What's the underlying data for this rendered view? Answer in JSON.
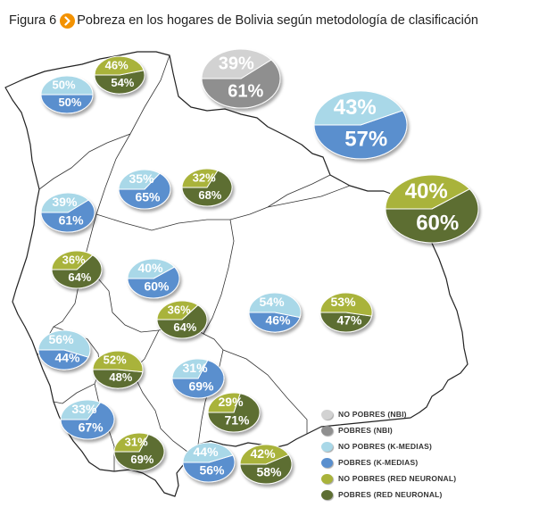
{
  "figure": {
    "label": "Figura 6",
    "title": "Pobreza en los hogares de Bolivia según metodología de clasificación"
  },
  "colors": {
    "nbi_no_pobres": "#d2d2d2",
    "nbi_pobres": "#8f8f8f",
    "km_no_pobres": "#a9d8e8",
    "km_pobres": "#5a8fce",
    "rn_no_pobres": "#a9b33a",
    "rn_pobres": "#5d6e32",
    "badge": "#f39200"
  },
  "legend": [
    {
      "key": "nbi_no_pobres",
      "label": "NO POBRES (NBI)"
    },
    {
      "key": "nbi_pobres",
      "label": "POBRES (NBI)"
    },
    {
      "key": "km_no_pobres",
      "label": "NO POBRES (K-MEDIAS)"
    },
    {
      "key": "km_pobres",
      "label": "POBRES (K-MEDIAS)"
    },
    {
      "key": "rn_no_pobres",
      "label": "NO POBRES (RED NEURONAL)"
    },
    {
      "key": "rn_pobres",
      "label": "POBRES (RED NEURONAL)"
    }
  ],
  "chart_data": [
    {
      "type": "pie",
      "method": "NBI",
      "no_pobres": 39,
      "pobres": 61,
      "labels": [
        "39%",
        "61%"
      ]
    },
    {
      "type": "pie",
      "method": "K-MEDIAS",
      "no_pobres": 43,
      "pobres": 57,
      "labels": [
        "43%",
        "57%"
      ]
    },
    {
      "type": "pie",
      "method": "RED NEURONAL",
      "no_pobres": 40,
      "pobres": 60,
      "labels": [
        "40%",
        "60%"
      ]
    },
    {
      "type": "pie",
      "method": "K-MEDIAS",
      "no_pobres": 50,
      "pobres": 50,
      "labels": [
        "50%",
        "50%"
      ]
    },
    {
      "type": "pie",
      "method": "RED NEURONAL",
      "no_pobres": 46,
      "pobres": 54,
      "labels": [
        "46%",
        "54%"
      ]
    },
    {
      "type": "pie",
      "method": "K-MEDIAS",
      "no_pobres": 35,
      "pobres": 65,
      "labels": [
        "35%",
        "65%"
      ]
    },
    {
      "type": "pie",
      "method": "RED NEURONAL",
      "no_pobres": 32,
      "pobres": 68,
      "labels": [
        "32%",
        "68%"
      ]
    },
    {
      "type": "pie",
      "method": "K-MEDIAS",
      "no_pobres": 39,
      "pobres": 61,
      "labels": [
        "39%",
        "61%"
      ]
    },
    {
      "type": "pie",
      "method": "RED NEURONAL",
      "no_pobres": 36,
      "pobres": 64,
      "labels": [
        "36%",
        "64%"
      ]
    },
    {
      "type": "pie",
      "method": "K-MEDIAS",
      "no_pobres": 40,
      "pobres": 60,
      "labels": [
        "40%",
        "60%"
      ]
    },
    {
      "type": "pie",
      "method": "RED NEURONAL",
      "no_pobres": 36,
      "pobres": 64,
      "labels": [
        "36%",
        "64%"
      ]
    },
    {
      "type": "pie",
      "method": "K-MEDIAS",
      "no_pobres": 54,
      "pobres": 46,
      "labels": [
        "54%",
        "46%"
      ]
    },
    {
      "type": "pie",
      "method": "RED NEURONAL",
      "no_pobres": 53,
      "pobres": 47,
      "labels": [
        "53%",
        "47%"
      ]
    },
    {
      "type": "pie",
      "method": "K-MEDIAS",
      "no_pobres": 56,
      "pobres": 44,
      "labels": [
        "56%",
        "44%"
      ]
    },
    {
      "type": "pie",
      "method": "RED NEURONAL",
      "no_pobres": 52,
      "pobres": 48,
      "labels": [
        "52%",
        "48%"
      ]
    },
    {
      "type": "pie",
      "method": "K-MEDIAS",
      "no_pobres": 31,
      "pobres": 69,
      "labels": [
        "31%",
        "69%"
      ]
    },
    {
      "type": "pie",
      "method": "K-MEDIAS",
      "no_pobres": 33,
      "pobres": 67,
      "labels": [
        "33%",
        "67%"
      ]
    },
    {
      "type": "pie",
      "method": "RED NEURONAL",
      "no_pobres": 29,
      "pobres": 71,
      "labels": [
        "29%",
        "71%"
      ]
    },
    {
      "type": "pie",
      "method": "RED NEURONAL",
      "no_pobres": 31,
      "pobres": 69,
      "labels": [
        "31%",
        "69%"
      ]
    },
    {
      "type": "pie",
      "method": "K-MEDIAS",
      "no_pobres": 44,
      "pobres": 56,
      "labels": [
        "44%",
        "56%"
      ]
    },
    {
      "type": "pie",
      "method": "RED NEURONAL",
      "no_pobres": 42,
      "pobres": 58,
      "labels": [
        "42%",
        "58%"
      ]
    }
  ]
}
